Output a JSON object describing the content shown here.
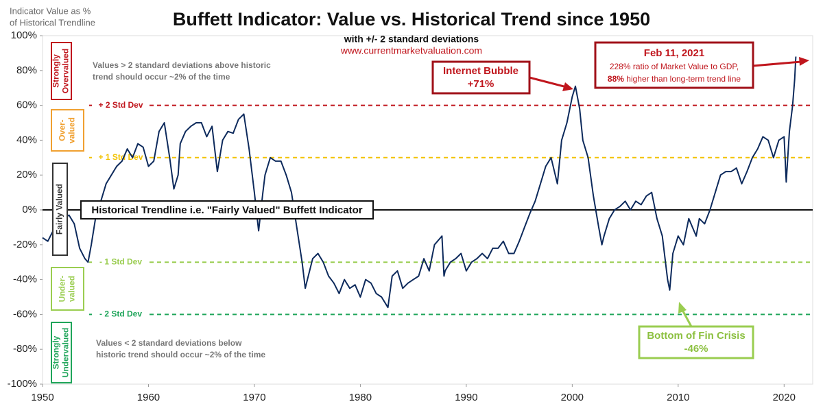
{
  "chart_data": {
    "type": "line",
    "title": "Buffett Indicator: Value vs. Historical Trend since 1950",
    "subtitle": "with +/- 2 standard deviations",
    "source": "www.currentmarketvaluation.com",
    "y_caption": [
      "Indicator Value as %",
      "of Historical Trendline"
    ],
    "xlim": [
      1950,
      2022.7
    ],
    "xticks": [
      1950,
      1960,
      1970,
      1980,
      1990,
      2000,
      2010,
      2020
    ],
    "ylim": [
      -100,
      100
    ],
    "yticks": [
      {
        "value": -100,
        "label": "-100%"
      },
      {
        "value": -80,
        "label": "-80%"
      },
      {
        "value": -60,
        "label": "-60%"
      },
      {
        "value": -40,
        "label": "-40%"
      },
      {
        "value": -20,
        "label": "-20%"
      },
      {
        "value": 0,
        "label": "0%"
      },
      {
        "value": 20,
        "label": "20%"
      },
      {
        "value": 40,
        "label": "40%"
      },
      {
        "value": 60,
        "label": "60%"
      },
      {
        "value": 80,
        "label": "80%"
      },
      {
        "value": 100,
        "label": "100%"
      }
    ],
    "bands": [
      {
        "name": "+ 2 Std Dev",
        "value": 60,
        "color": "#c0161d"
      },
      {
        "name": "+ 1 Std Dev",
        "value": 30,
        "color": "#f2c200"
      },
      {
        "name": "- 1 Std Dev",
        "value": -30,
        "color": "#9acd50"
      },
      {
        "name": "- 2 Std Dev",
        "value": -60,
        "color": "#1fa55a"
      }
    ],
    "zones": [
      {
        "lines": [
          "Strongly",
          "Overvalued"
        ],
        "color": "#c0161d"
      },
      {
        "lines": [
          "Over-",
          "valued"
        ],
        "color": "#f0a030"
      },
      {
        "lines": [
          "Fairly Valued"
        ],
        "color": "#333333"
      },
      {
        "lines": [
          "Under-",
          "valued"
        ],
        "color": "#9acd50"
      },
      {
        "lines": [
          "Strongly",
          "Undervalued"
        ],
        "color": "#1fa55a"
      }
    ],
    "notes": {
      "above": [
        "Values > 2 standard deviations above historic",
        "trend should occur ~2% of the time"
      ],
      "below": [
        "Values < 2 standard deviations below",
        "historic trend should occur ~2% of the time"
      ],
      "trendline": "Historical Trendline i.e. \"Fairly Valued\" Buffett Indicator",
      "bubble": [
        "Internet Bubble",
        "+71%"
      ],
      "crisis": [
        "Bottom of Fin Crisis",
        "-46%"
      ],
      "latest": [
        "Feb 11, 2021",
        "228% ratio of Market Value to GDP,",
        "88%",
        " higher than long-term trend line"
      ]
    },
    "x": [
      1950,
      1950.5,
      1951,
      1951.5,
      1952,
      1952.5,
      1953,
      1953.5,
      1954,
      1954.3,
      1954.6,
      1955,
      1955.5,
      1956,
      1956.5,
      1957,
      1957.5,
      1958,
      1958.5,
      1959,
      1959.5,
      1960,
      1960.5,
      1961,
      1961.5,
      1962,
      1962.4,
      1962.8,
      1963,
      1963.5,
      1964,
      1964.5,
      1965,
      1965.5,
      1966,
      1966.5,
      1967,
      1967.5,
      1968,
      1968.5,
      1969,
      1969.5,
      1970,
      1970.4,
      1970.8,
      1971,
      1971.5,
      1972,
      1972.5,
      1973,
      1973.5,
      1974,
      1974.5,
      1974.8,
      1975,
      1975.5,
      1976,
      1976.5,
      1977,
      1977.5,
      1978,
      1978.5,
      1979,
      1979.5,
      1980,
      1980.5,
      1981,
      1981.5,
      1982,
      1982.6,
      1983,
      1983.5,
      1984,
      1984.5,
      1985,
      1985.5,
      1986,
      1986.5,
      1987,
      1987.7,
      1987.9,
      1988,
      1988.5,
      1989,
      1989.5,
      1990,
      1990.5,
      1991,
      1991.5,
      1992,
      1992.5,
      1993,
      1993.5,
      1994,
      1994.5,
      1995,
      1995.5,
      1996,
      1996.5,
      1997,
      1997.5,
      1998,
      1998.6,
      1999,
      1999.5,
      2000,
      2000.3,
      2000.7,
      2001,
      2001.5,
      2002,
      2002.5,
      2002.8,
      2003,
      2003.5,
      2004,
      2004.5,
      2005,
      2005.5,
      2006,
      2006.5,
      2007,
      2007.5,
      2008,
      2008.5,
      2009,
      2009.2,
      2009.5,
      2010,
      2010.5,
      2011,
      2011.7,
      2012,
      2012.5,
      2013,
      2013.5,
      2014,
      2014.5,
      2015,
      2015.5,
      2016,
      2016.5,
      2017,
      2017.5,
      2018,
      2018.5,
      2019,
      2019.5,
      2020,
      2020.2,
      2020.5,
      2020.8,
      2021,
      2021.11
    ],
    "series": [
      {
        "name": "Buffett Indicator",
        "color": "#0d2a5c",
        "values": [
          -16,
          -18,
          -12,
          -8,
          -5,
          -3,
          -8,
          -22,
          -28,
          -30,
          -20,
          -5,
          5,
          15,
          20,
          25,
          28,
          35,
          30,
          38,
          36,
          25,
          28,
          45,
          50,
          30,
          12,
          20,
          38,
          45,
          48,
          50,
          50,
          42,
          48,
          22,
          40,
          45,
          44,
          52,
          55,
          35,
          10,
          -12,
          10,
          20,
          30,
          28,
          28,
          20,
          10,
          -10,
          -30,
          -45,
          -40,
          -28,
          -25,
          -30,
          -38,
          -42,
          -48,
          -40,
          -45,
          -43,
          -50,
          -40,
          -42,
          -48,
          -50,
          -56,
          -38,
          -35,
          -45,
          -42,
          -40,
          -38,
          -28,
          -35,
          -20,
          -15,
          -38,
          -35,
          -30,
          -28,
          -25,
          -35,
          -30,
          -28,
          -25,
          -28,
          -22,
          -22,
          -18,
          -25,
          -25,
          -18,
          -10,
          -2,
          5,
          15,
          25,
          30,
          15,
          40,
          50,
          65,
          71,
          58,
          40,
          30,
          8,
          -10,
          -20,
          -15,
          -5,
          0,
          2,
          5,
          0,
          5,
          3,
          8,
          10,
          -5,
          -15,
          -40,
          -46,
          -25,
          -15,
          -20,
          -5,
          -15,
          -5,
          -8,
          0,
          10,
          20,
          22,
          22,
          24,
          15,
          22,
          30,
          35,
          42,
          40,
          30,
          40,
          42,
          16,
          45,
          60,
          75,
          88
        ]
      }
    ]
  }
}
